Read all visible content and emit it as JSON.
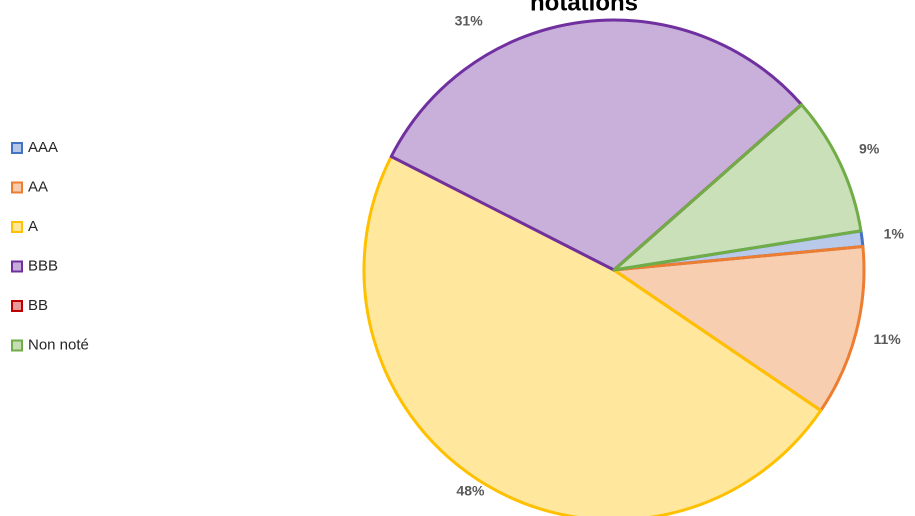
{
  "chart_data": {
    "type": "pie",
    "title": "notations",
    "categories": [
      "AAA",
      "AA",
      "A",
      "BBB",
      "BB",
      "Non noté"
    ],
    "values": [
      1,
      11,
      48,
      31,
      0,
      9
    ],
    "value_labels": [
      "1%",
      "11%",
      "48%",
      "31%",
      null,
      "9%"
    ],
    "colors": [
      "#4472c4",
      "#ed7d31",
      "#ffc000",
      "#7030a0",
      "#c00000",
      "#70ad47"
    ],
    "legend": "left"
  }
}
